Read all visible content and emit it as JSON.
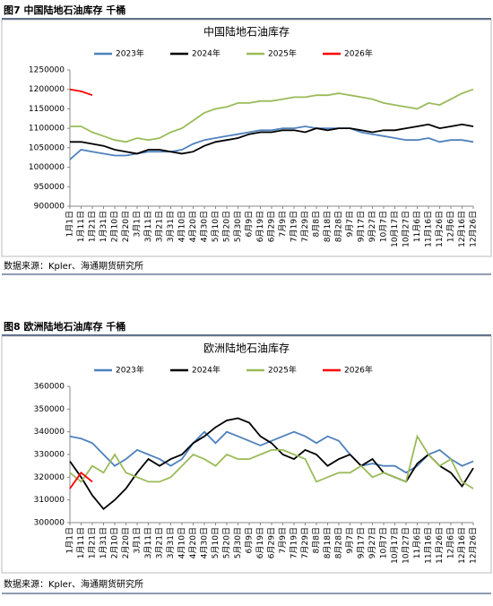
{
  "captions": [
    "图7 中国陆地石油库存  千桶",
    "图8 欧洲陆地石油库存  千桶"
  ],
  "sources": [
    "数据来源：Kpler、海通期货研究所",
    "数据来源：Kpler、海通期货研究所"
  ],
  "chart_data": [
    {
      "type": "line",
      "title": "中国陆地石油库存",
      "categories": [
        "1月1日",
        "1月11日",
        "1月21日",
        "1月31日",
        "2月10日",
        "2月20日",
        "3月1日",
        "3月11日",
        "3月21日",
        "3月31日",
        "4月10日",
        "4月20日",
        "4月30日",
        "5月10日",
        "5月20日",
        "5月30日",
        "6月9日",
        "6月19日",
        "6月29日",
        "7月9日",
        "7月19日",
        "7月29日",
        "8月8日",
        "8月18日",
        "8月28日",
        "9月7日",
        "9月17日",
        "9月27日",
        "10月7日",
        "10月17日",
        "10月27日",
        "11月6日",
        "11月16日",
        "11月26日",
        "12月6日",
        "12月16日",
        "12月26日"
      ],
      "ylim": [
        900000,
        1250000
      ],
      "yticks": [
        900000,
        950000,
        1000000,
        1050000,
        1100000,
        1150000,
        1200000,
        1250000
      ],
      "legend": "top",
      "series": [
        {
          "name": "2023年",
          "color": "#4f81bd",
          "values": [
            1020000,
            1045000,
            1040000,
            1035000,
            1030000,
            1030000,
            1035000,
            1040000,
            1040000,
            1040000,
            1045000,
            1060000,
            1070000,
            1075000,
            1080000,
            1085000,
            1090000,
            1095000,
            1095000,
            1100000,
            1100000,
            1105000,
            1100000,
            1100000,
            1100000,
            1100000,
            1090000,
            1085000,
            1080000,
            1075000,
            1070000,
            1070000,
            1075000,
            1065000,
            1070000,
            1070000,
            1065000
          ]
        },
        {
          "name": "2024年",
          "color": "#000000",
          "values": [
            1065000,
            1065000,
            1060000,
            1055000,
            1045000,
            1040000,
            1035000,
            1045000,
            1045000,
            1040000,
            1035000,
            1040000,
            1055000,
            1065000,
            1070000,
            1075000,
            1085000,
            1090000,
            1090000,
            1095000,
            1095000,
            1090000,
            1100000,
            1095000,
            1100000,
            1100000,
            1095000,
            1090000,
            1095000,
            1095000,
            1100000,
            1105000,
            1110000,
            1100000,
            1105000,
            1110000,
            1105000
          ]
        },
        {
          "name": "2025年",
          "color": "#9bbb59",
          "values": [
            1105000,
            1105000,
            1090000,
            1080000,
            1070000,
            1065000,
            1075000,
            1070000,
            1075000,
            1090000,
            1100000,
            1120000,
            1140000,
            1150000,
            1155000,
            1165000,
            1165000,
            1170000,
            1170000,
            1175000,
            1180000,
            1180000,
            1185000,
            1185000,
            1190000,
            1185000,
            1180000,
            1175000,
            1165000,
            1160000,
            1155000,
            1150000,
            1165000,
            1160000,
            1175000,
            1190000,
            1200000
          ]
        },
        {
          "name": "2026年",
          "color": "#ff0000",
          "values": [
            1200000,
            1195000,
            1185000,
            null,
            null,
            null,
            null,
            null,
            null,
            null,
            null,
            null,
            null,
            null,
            null,
            null,
            null,
            null,
            null,
            null,
            null,
            null,
            null,
            null,
            null,
            null,
            null,
            null,
            null,
            null,
            null,
            null,
            null,
            null,
            null,
            null,
            null
          ]
        }
      ]
    },
    {
      "type": "line",
      "title": "欧洲陆地石油库存",
      "categories": [
        "1月1日",
        "1月11日",
        "1月21日",
        "1月31日",
        "2月10日",
        "2月20日",
        "3月1日",
        "3月11日",
        "3月21日",
        "3月31日",
        "4月10日",
        "4月20日",
        "4月30日",
        "5月10日",
        "5月20日",
        "5月30日",
        "6月9日",
        "6月19日",
        "6月29日",
        "7月9日",
        "7月19日",
        "7月29日",
        "8月8日",
        "8月18日",
        "8月28日",
        "9月7日",
        "9月17日",
        "9月27日",
        "10月7日",
        "10月17日",
        "10月27日",
        "11月6日",
        "11月16日",
        "11月26日",
        "12月6日",
        "12月16日",
        "12月26日"
      ],
      "ylim": [
        300000,
        360000
      ],
      "yticks": [
        300000,
        310000,
        320000,
        330000,
        340000,
        350000,
        360000
      ],
      "legend": "top",
      "series": [
        {
          "name": "2023年",
          "color": "#4f81bd",
          "values": [
            338000,
            337000,
            335000,
            330000,
            325000,
            328000,
            332000,
            330000,
            328000,
            325000,
            328000,
            335000,
            340000,
            335000,
            340000,
            338000,
            336000,
            334000,
            336000,
            338000,
            340000,
            338000,
            335000,
            338000,
            336000,
            330000,
            325000,
            326000,
            325000,
            325000,
            322000,
            325000,
            330000,
            332000,
            328000,
            325000,
            327000
          ]
        },
        {
          "name": "2024年",
          "color": "#000000",
          "values": [
            327000,
            320000,
            312000,
            306000,
            310000,
            315000,
            322000,
            328000,
            325000,
            328000,
            330000,
            335000,
            338000,
            342000,
            345000,
            346000,
            344000,
            338000,
            335000,
            330000,
            328000,
            332000,
            330000,
            325000,
            328000,
            330000,
            325000,
            328000,
            322000,
            320000,
            318000,
            326000,
            330000,
            325000,
            322000,
            316000,
            324000
          ]
        },
        {
          "name": "2025年",
          "color": "#9bbb59",
          "values": [
            322000,
            318000,
            325000,
            322000,
            330000,
            322000,
            320000,
            318000,
            318000,
            320000,
            325000,
            330000,
            328000,
            325000,
            330000,
            328000,
            328000,
            330000,
            332000,
            332000,
            330000,
            328000,
            318000,
            320000,
            322000,
            322000,
            325000,
            320000,
            322000,
            320000,
            318000,
            338000,
            330000,
            325000,
            328000,
            318000,
            315000
          ]
        },
        {
          "name": "2026年",
          "color": "#ff0000",
          "values": [
            315000,
            322000,
            318000,
            null,
            null,
            null,
            null,
            null,
            null,
            null,
            null,
            null,
            null,
            null,
            null,
            null,
            null,
            null,
            null,
            null,
            null,
            null,
            null,
            null,
            null,
            null,
            null,
            null,
            null,
            null,
            null,
            null,
            null,
            null,
            null,
            null,
            null
          ]
        }
      ]
    }
  ]
}
